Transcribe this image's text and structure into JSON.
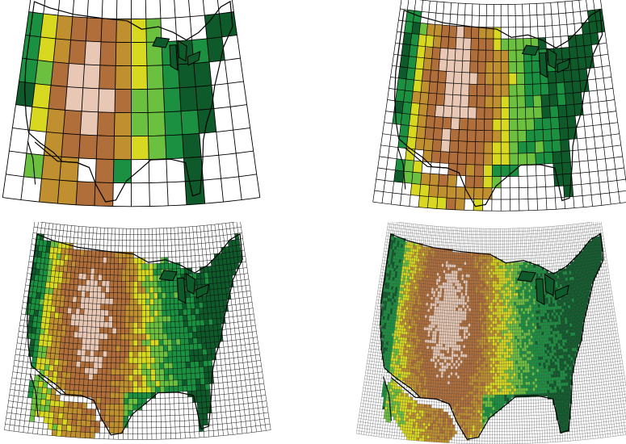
{
  "figure": {
    "panels": [
      {
        "id": "coarse-grid-map",
        "cols": 14,
        "rows": 9,
        "gridColor": "#000000"
      },
      {
        "id": "medium-grid-map",
        "cols": 28,
        "rows": 18,
        "gridColor": "#000000"
      },
      {
        "id": "fine-grid-map",
        "cols": 56,
        "rows": 36,
        "gridColor": "#000000"
      },
      {
        "id": "finest-grid-map",
        "cols": 110,
        "rows": 70,
        "gridColor": "#2b2b2b"
      }
    ],
    "colors": {
      "high_elevation_light": "#e8c8b4",
      "high_elevation": "#b06e3a",
      "mid_elevation": "#c09030",
      "low_dry": "#d8d820",
      "low_moist": "#6cc040",
      "lowland_green": "#1a9040",
      "coastal_dark": "#0e5a2a",
      "ocean": "#ffffff",
      "outside_domain": "#ffffff"
    }
  }
}
